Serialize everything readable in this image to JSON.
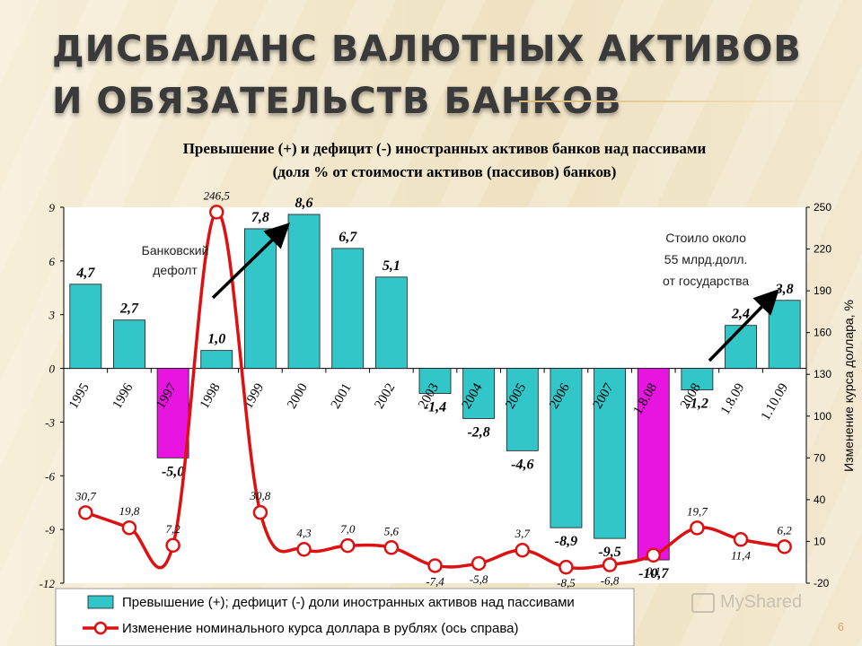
{
  "slide": {
    "title": "Дисбаланс валютных активов и обязательств банков",
    "page_number": "6",
    "watermark": "MyShared"
  },
  "chart_data": {
    "type": "bar",
    "title_line1": "Превышение (+) и дефицит (-) иностранных активов банков над пассивами",
    "title_line2": "(доля % от стоимости активов (пассивов) банков)",
    "categories": [
      "1995",
      "1996",
      "1997",
      "1998",
      "1999",
      "2000",
      "2001",
      "2002",
      "2003",
      "2004",
      "2005",
      "2006",
      "2007",
      "1.8.08",
      "2008",
      "1.8.09",
      "1.10.09"
    ],
    "series": [
      {
        "name": "Превышение (+); дефицит (-) доли иностранных активов над пассивами",
        "axis": "left",
        "values": [
          4.7,
          2.7,
          -5.0,
          1.0,
          7.8,
          8.6,
          6.7,
          5.1,
          -1.4,
          -2.8,
          -4.6,
          -8.9,
          -9.5,
          -10.7,
          -1.2,
          2.4,
          3.8
        ],
        "labels": [
          "4,7",
          "2,7",
          "-5,0",
          "1,0",
          "7,8",
          "8,6",
          "6,7",
          "5,1",
          "-1,4",
          "-2,8",
          "-4,6",
          "-8,9",
          "-9,5",
          "-10,7",
          "-1,2",
          "2,4",
          "3,8"
        ],
        "colors": [
          "#33c6c9",
          "#33c6c9",
          "#e815e0",
          "#33c6c9",
          "#33c6c9",
          "#33c6c9",
          "#33c6c9",
          "#33c6c9",
          "#33c6c9",
          "#33c6c9",
          "#33c6c9",
          "#33c6c9",
          "#33c6c9",
          "#e815e0",
          "#33c6c9",
          "#33c6c9",
          "#33c6c9"
        ]
      },
      {
        "name": "Изменение номинального курса доллара в рублях (ось справа)",
        "axis": "right",
        "values": [
          30.7,
          19.8,
          7.2,
          246.5,
          30.8,
          4.3,
          7.0,
          5.6,
          -7.4,
          -5.8,
          3.7,
          -8.5,
          -6.8,
          0.1,
          19.7,
          11.4,
          6.2
        ],
        "labels": [
          "30,7",
          "19,8",
          "7,2",
          "246,5",
          "30,8",
          "4,3",
          "7,0",
          "5,6",
          "-7,4",
          "-5,8",
          "3,7",
          "-8,5",
          "-6,8",
          "0,1",
          "19,7",
          "11,4",
          "6,2"
        ],
        "color": "#dd1111"
      }
    ],
    "ylim_left": [
      -12,
      9
    ],
    "yticks_left": [
      -12,
      -9,
      -6,
      -3,
      0,
      3,
      6,
      9
    ],
    "ylim_right": [
      -20,
      250
    ],
    "yticks_right": [
      -20,
      10,
      40,
      70,
      100,
      130,
      160,
      190,
      220,
      250
    ],
    "ylabel_right": "Изменение курса доллара, %",
    "annotations": [
      {
        "text": [
          "Банковский",
          "дефолт"
        ]
      },
      {
        "text": [
          "Стоило около",
          "55 млрд.долл.",
          "от государства"
        ]
      }
    ],
    "legend_position": "bottom",
    "colors": {
      "bar": "#33c6c9",
      "bar_highlight": "#e815e0",
      "line": "#dd1111",
      "plot_bg": "#ffffff"
    }
  }
}
